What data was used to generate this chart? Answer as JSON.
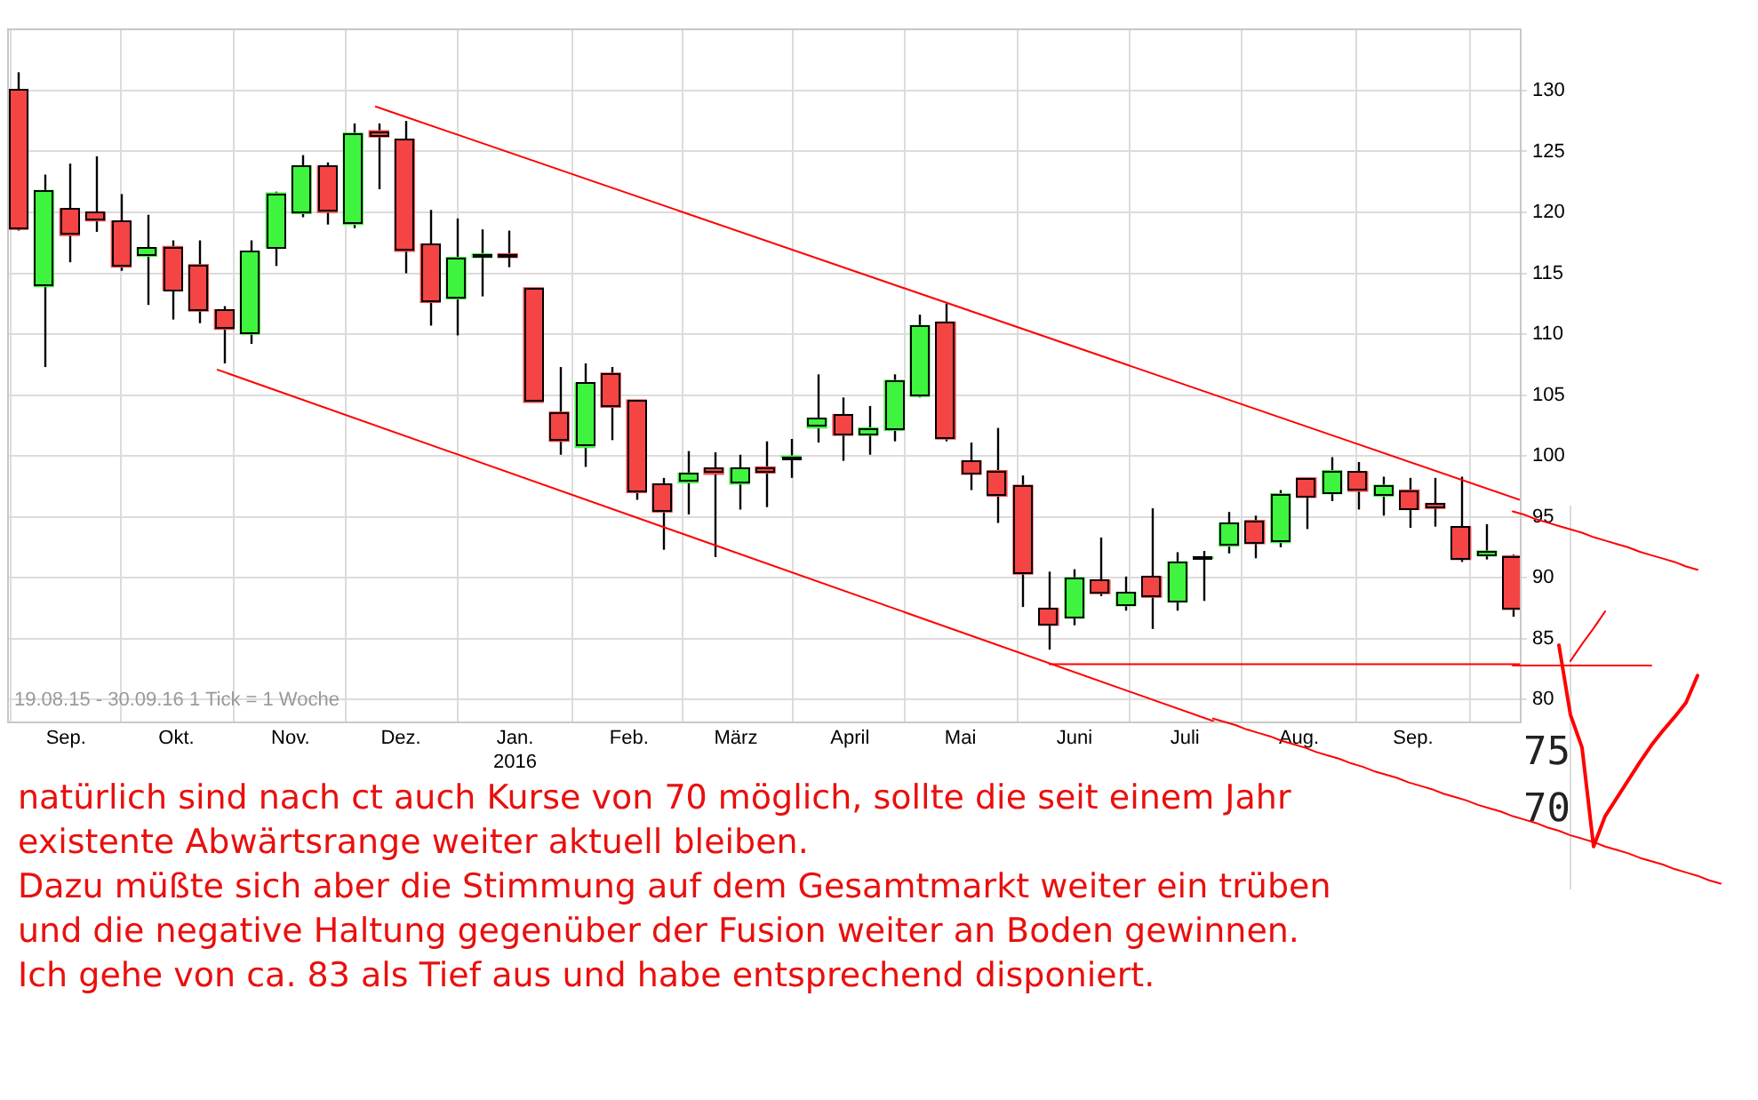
{
  "chart_data": [
    {
      "type": "candlestick",
      "x": [
        "2015-08-19",
        "2015-08-26",
        "2015-09-02",
        "2015-09-09",
        "2015-09-16",
        "2015-09-23",
        "2015-09-30",
        "2015-10-07",
        "2015-10-14",
        "2015-10-21",
        "2015-10-28",
        "2015-11-04",
        "2015-11-11",
        "2015-11-18",
        "2015-11-25",
        "2015-12-02",
        "2015-12-09",
        "2015-12-16",
        "2015-12-23",
        "2015-12-30",
        "2016-01-06",
        "2016-01-13",
        "2016-01-20",
        "2016-01-27",
        "2016-02-03",
        "2016-02-10",
        "2016-02-17",
        "2016-02-24",
        "2016-03-02",
        "2016-03-09",
        "2016-03-16",
        "2016-03-23",
        "2016-03-30",
        "2016-04-06",
        "2016-04-13",
        "2016-04-20",
        "2016-04-27",
        "2016-05-04",
        "2016-05-11",
        "2016-05-18",
        "2016-05-25",
        "2016-06-01",
        "2016-06-08",
        "2016-06-15",
        "2016-06-22",
        "2016-06-29",
        "2016-07-06",
        "2016-07-13",
        "2016-07-20",
        "2016-07-27",
        "2016-08-03",
        "2016-08-10",
        "2016-08-17",
        "2016-08-24",
        "2016-08-31",
        "2016-09-07",
        "2016-09-14",
        "2016-09-21",
        "2016-09-28"
      ],
      "ohlc": [
        [
          130.1,
          131.5,
          118.5,
          118.6
        ],
        [
          113.9,
          123.1,
          107.3,
          121.8
        ],
        [
          120.3,
          124.0,
          115.9,
          118.1
        ],
        [
          120.0,
          124.6,
          118.4,
          119.3
        ],
        [
          119.3,
          121.5,
          115.2,
          115.5
        ],
        [
          116.4,
          119.8,
          112.4,
          117.1
        ],
        [
          117.2,
          117.7,
          111.2,
          113.6
        ],
        [
          115.7,
          117.7,
          110.9,
          111.9
        ],
        [
          112.0,
          112.3,
          107.6,
          110.4
        ],
        [
          110.0,
          117.7,
          109.2,
          116.8
        ],
        [
          117.1,
          121.7,
          115.6,
          121.6
        ],
        [
          119.9,
          124.7,
          119.6,
          123.8
        ],
        [
          123.8,
          124.1,
          119.0,
          120.0
        ],
        [
          119.0,
          127.3,
          118.7,
          126.5
        ],
        [
          126.7,
          127.3,
          121.9,
          126.2
        ],
        [
          126.0,
          127.5,
          115.0,
          116.8
        ],
        [
          117.4,
          120.2,
          110.7,
          112.6
        ],
        [
          112.9,
          119.5,
          109.9,
          116.3
        ],
        [
          116.3,
          118.6,
          113.1,
          116.6
        ],
        [
          116.6,
          118.5,
          115.5,
          116.3
        ],
        [
          113.8,
          113.8,
          104.4,
          104.4
        ],
        [
          103.6,
          107.3,
          100.1,
          101.2
        ],
        [
          100.7,
          107.6,
          99.1,
          106.0
        ],
        [
          106.8,
          107.3,
          101.3,
          104.0
        ],
        [
          104.6,
          104.6,
          96.4,
          97.0
        ],
        [
          97.7,
          98.2,
          92.3,
          95.4
        ],
        [
          97.8,
          100.4,
          95.2,
          98.6
        ],
        [
          99.0,
          100.3,
          91.7,
          98.5
        ],
        [
          97.7,
          100.1,
          95.6,
          99.0
        ],
        [
          99.1,
          101.2,
          95.8,
          98.6
        ],
        [
          99.9,
          101.4,
          98.2,
          100.0
        ],
        [
          102.3,
          106.7,
          101.1,
          103.1
        ],
        [
          103.4,
          104.8,
          99.6,
          101.7
        ],
        [
          101.7,
          104.1,
          100.1,
          102.3
        ],
        [
          102.1,
          106.7,
          101.2,
          106.2
        ],
        [
          104.9,
          111.6,
          104.8,
          110.7
        ],
        [
          111.0,
          112.5,
          101.2,
          101.4
        ],
        [
          99.6,
          101.1,
          97.2,
          98.5
        ],
        [
          98.8,
          102.3,
          94.5,
          96.7
        ],
        [
          97.6,
          98.4,
          87.6,
          90.3
        ],
        [
          87.5,
          90.5,
          84.1,
          86.1
        ],
        [
          86.7,
          90.7,
          86.1,
          90.0
        ],
        [
          89.8,
          93.3,
          88.5,
          88.7
        ],
        [
          87.7,
          90.1,
          87.3,
          88.8
        ],
        [
          90.1,
          95.7,
          85.8,
          88.4
        ],
        [
          88.0,
          92.1,
          87.3,
          91.3
        ],
        [
          91.6,
          92.2,
          88.1,
          91.7
        ],
        [
          92.6,
          95.4,
          92.0,
          94.5
        ],
        [
          94.7,
          95.1,
          91.6,
          92.8
        ],
        [
          92.9,
          97.2,
          92.5,
          96.9
        ],
        [
          98.2,
          98.2,
          94.0,
          96.6
        ],
        [
          96.9,
          99.9,
          96.3,
          98.8
        ],
        [
          98.7,
          99.5,
          95.6,
          97.1
        ],
        [
          96.7,
          98.3,
          95.1,
          97.6
        ],
        [
          97.2,
          98.2,
          94.1,
          95.6
        ],
        [
          96.1,
          98.2,
          94.2,
          95.7
        ],
        [
          94.2,
          98.3,
          91.3,
          91.5
        ],
        [
          91.8,
          94.4,
          91.5,
          92.2
        ],
        [
          91.8,
          91.9,
          86.8,
          87.4
        ]
      ],
      "colors": [
        "#f44444",
        "#3ef43e",
        "#f44444",
        "#f44444",
        "#f44444",
        "#3ef43e",
        "#f44444",
        "#f44444",
        "#f44444",
        "#3ef43e",
        "#3ef43e",
        "#3ef43e",
        "#f44444",
        "#3ef43e",
        "#f44444",
        "#f44444",
        "#f44444",
        "#3ef43e",
        "#3ef43e",
        "#f44444",
        "#f44444",
        "#f44444",
        "#3ef43e",
        "#f44444",
        "#f44444",
        "#f44444",
        "#3ef43e",
        "#f44444",
        "#3ef43e",
        "#f44444",
        "#3ef43e",
        "#3ef43e",
        "#f44444",
        "#3ef43e",
        "#3ef43e",
        "#3ef43e",
        "#f44444",
        "#f44444",
        "#f44444",
        "#f44444",
        "#f44444",
        "#3ef43e",
        "#f44444",
        "#3ef43e",
        "#f44444",
        "#3ef43e",
        "#3ef43e",
        "#3ef43e",
        "#f44444",
        "#3ef43e",
        "#f44444",
        "#3ef43e",
        "#f44444",
        "#3ef43e",
        "#f44444",
        "#f44444",
        "#f44444",
        "#3ef43e",
        "#f44444"
      ],
      "series": [
        {
          "type": "line",
          "color": "#ff0000",
          "x": [
            "2015-11-24",
            "2016-09-30"
          ],
          "values": [
            128.7,
            96.4
          ]
        },
        {
          "type": "line",
          "color": "#ff0000",
          "x": [
            "2015-10-12",
            "2016-07-09"
          ],
          "values": [
            107.1,
            78.2
          ]
        },
        {
          "type": "line",
          "color": "#ff0000",
          "x": [
            "2016-05-25",
            "2016-09-30"
          ],
          "values": [
            82.9,
            82.9
          ]
        }
      ],
      "xlim": [
        "2015-08-16",
        "2016-09-30"
      ],
      "xticks": [
        {
          "value": "2015-09-01",
          "label": "Sep."
        },
        {
          "value": "2015-10-01",
          "label": "Okt."
        },
        {
          "value": "2015-11-01",
          "label": "Nov."
        },
        {
          "value": "2015-12-01",
          "label": "Dez."
        },
        {
          "value": "2016-01-01",
          "label": "Jan.\n2016"
        },
        {
          "value": "2016-02-01",
          "label": "Feb."
        },
        {
          "value": "2016-03-01",
          "label": "März"
        },
        {
          "value": "2016-04-01",
          "label": "April"
        },
        {
          "value": "2016-05-01",
          "label": "Mai"
        },
        {
          "value": "2016-06-01",
          "label": "Juni"
        },
        {
          "value": "2016-07-01",
          "label": "Juli"
        },
        {
          "value": "2016-08-01",
          "label": "Aug."
        },
        {
          "value": "2016-09-01",
          "label": "Sep."
        }
      ],
      "ylim": [
        78.2,
        135.1
      ],
      "yticks": [
        80,
        85,
        90,
        95,
        100,
        105,
        110,
        115,
        120,
        125,
        130
      ],
      "grid": true,
      "annotations": [
        "19.08.15 - 30.09.16   1 Tick = 1 Woche",
        "natürlich sind nach ct auch Kurse von 70 möglich, sollte die seit einem Jahr existente Abwärtsrange weiter aktuell bleiben.",
        "Dazu müßte sich aber die Stimmung auf dem Gesamtmarkt weiter ein trüben und die negative Haltung gegenüber der Fusion weiter an Boden gewinnen.",
        "Ich gehe von ca. 83 als Tief aus und habe entsprechend disponiert."
      ]
    },
    {
      "type": "line",
      "categories": [
        null,
        null,
        null,
        null,
        null,
        null,
        null,
        null,
        null,
        null,
        null,
        null,
        null,
        null,
        null,
        null,
        null,
        null,
        null,
        null,
        null,
        null,
        null,
        null,
        null,
        null,
        null,
        null,
        null,
        null,
        null,
        null,
        null,
        null,
        null,
        null,
        null,
        null,
        null,
        null,
        null,
        null,
        null,
        null,
        null
      ],
      "series": [
        {
          "color": "#ff0000",
          "values": [
            78.2,
            77.9,
            77.6,
            77.2,
            76.9,
            76.6,
            76.2,
            75.9,
            75.6,
            75.2,
            74.9,
            74.6,
            74.2,
            73.9,
            73.5,
            73.2,
            72.9,
            72.5,
            72.2,
            71.9,
            71.5,
            71.2,
            70.9,
            70.5,
            70.2,
            69.9,
            69.5,
            69.2,
            68.9,
            68.5,
            68.2,
            67.8,
            67.5,
            67.2,
            66.8,
            66.5,
            66.2,
            65.8,
            65.5,
            65.2,
            64.8,
            64.5,
            64.2,
            63.8,
            63.5
          ]
        },
        {
          "color": "#ff0000",
          "values": [
            null,
            null,
            null,
            null,
            null,
            null,
            null,
            null,
            null,
            null,
            null,
            null,
            null,
            null,
            null,
            null,
            null,
            null,
            null,
            null,
            null,
            null,
            null,
            null,
            null,
            null,
            96.6,
            96.3,
            95.9,
            95.6,
            95.3,
            95.0,
            94.7,
            94.3,
            94.0,
            93.7,
            93.4,
            93.0,
            92.7,
            92.4,
            92.1,
            91.7,
            91.4,
            null,
            null
          ]
        },
        {
          "color": "#ff0000",
          "values": [
            null,
            null,
            null,
            null,
            null,
            null,
            null,
            null,
            null,
            null,
            null,
            null,
            null,
            null,
            null,
            null,
            null,
            null,
            null,
            null,
            null,
            null,
            null,
            null,
            null,
            null,
            82.9,
            82.9,
            82.9,
            82.9,
            82.9,
            82.9,
            82.9,
            82.9,
            82.9,
            82.9,
            82.9,
            82.9,
            82.9,
            null,
            null,
            null,
            null,
            null,
            null
          ]
        },
        {
          "color": "#ff0000",
          "values": [
            null,
            null,
            null,
            null,
            null,
            null,
            null,
            null,
            null,
            null,
            null,
            null,
            null,
            null,
            null,
            null,
            null,
            null,
            null,
            null,
            null,
            null,
            null,
            null,
            null,
            null,
            null,
            null,
            null,
            null,
            null,
            83.3,
            84.8,
            86.2,
            87.7,
            null,
            null,
            null,
            null,
            null,
            null,
            null,
            null,
            null,
            null
          ]
        },
        {
          "color": "#ff0000",
          "values": [
            null,
            null,
            null,
            null,
            null,
            null,
            null,
            null,
            null,
            null,
            null,
            null,
            null,
            null,
            null,
            null,
            null,
            null,
            null,
            null,
            null,
            null,
            null,
            null,
            null,
            null,
            null,
            null,
            null,
            null,
            84.7,
            78.5,
            75.6,
            66.8,
            69.5,
            71.1,
            72.7,
            74.3,
            75.8,
            77.1,
            78.3,
            79.6,
            82.0,
            null,
            null
          ]
        }
      ],
      "ylim": [
        63.1,
        97.0
      ],
      "yticks": [
        70,
        75
      ],
      "tick_labels": "y"
    }
  ]
}
